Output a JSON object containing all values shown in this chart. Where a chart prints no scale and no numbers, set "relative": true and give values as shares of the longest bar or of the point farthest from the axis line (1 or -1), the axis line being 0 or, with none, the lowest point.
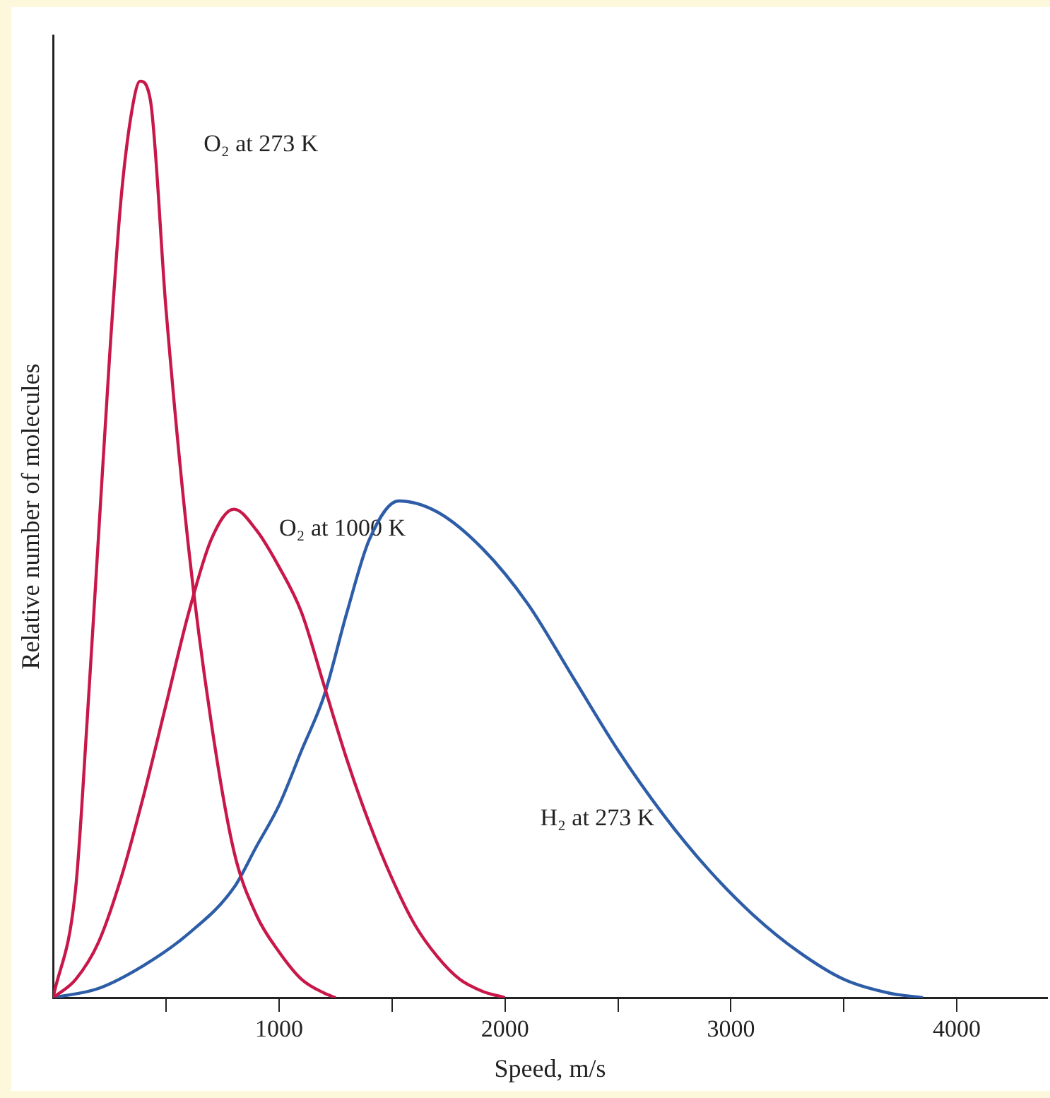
{
  "chart_data": {
    "type": "line",
    "relative": true,
    "xlabel": "Speed, m/s",
    "ylabel": "Relative number of molecules",
    "xlim": [
      0,
      4400
    ],
    "xticks": [
      {
        "value": 500,
        "label": null
      },
      1000,
      {
        "value": 1500,
        "label": null
      },
      2000,
      {
        "value": 2500,
        "label": null
      },
      3000,
      {
        "value": 3500,
        "label": null
      },
      4000
    ],
    "grid": false,
    "legend": false,
    "marker": "none",
    "line_style": "solid",
    "series": [
      {
        "name": "O₂ at 273 K",
        "color": "#c8184a",
        "x": [
          0,
          100,
          150,
          200,
          250,
          300,
          350,
          385,
          430,
          500,
          600,
          700,
          800,
          900,
          1000,
          1100,
          1200,
          1250
        ],
        "values": [
          0,
          0.12,
          0.3,
          0.5,
          0.7,
          0.87,
          0.97,
          1,
          0.98,
          0.75,
          0.49,
          0.3,
          0.16,
          0.09,
          0.05,
          0.02,
          0.005,
          0
        ]
      },
      {
        "name": "O₂ at 1000 K",
        "color": "#c8184a",
        "x": [
          0,
          100,
          200,
          300,
          400,
          500,
          600,
          700,
          800,
          900,
          1000,
          1100,
          1200,
          1300,
          1400,
          1500,
          1600,
          1700,
          1800,
          1900,
          2000
        ],
        "values": [
          0,
          0.02,
          0.06,
          0.13,
          0.22,
          0.32,
          0.42,
          0.5,
          0.533,
          0.51,
          0.47,
          0.42,
          0.34,
          0.26,
          0.19,
          0.13,
          0.08,
          0.045,
          0.02,
          0.007,
          0
        ]
      },
      {
        "name": "H₂ at 273 K",
        "color": "#2e5da8",
        "x": [
          0,
          200,
          400,
          600,
          800,
          900,
          1000,
          1100,
          1200,
          1300,
          1400,
          1530,
          1700,
          1900,
          2100,
          2300,
          2500,
          2700,
          2900,
          3100,
          3300,
          3500,
          3700,
          3850
        ],
        "values": [
          0,
          0.01,
          0.035,
          0.07,
          0.12,
          0.165,
          0.21,
          0.27,
          0.33,
          0.42,
          0.5,
          0.542,
          0.53,
          0.49,
          0.43,
          0.35,
          0.27,
          0.2,
          0.14,
          0.09,
          0.05,
          0.02,
          0.005,
          0
        ]
      }
    ]
  }
}
